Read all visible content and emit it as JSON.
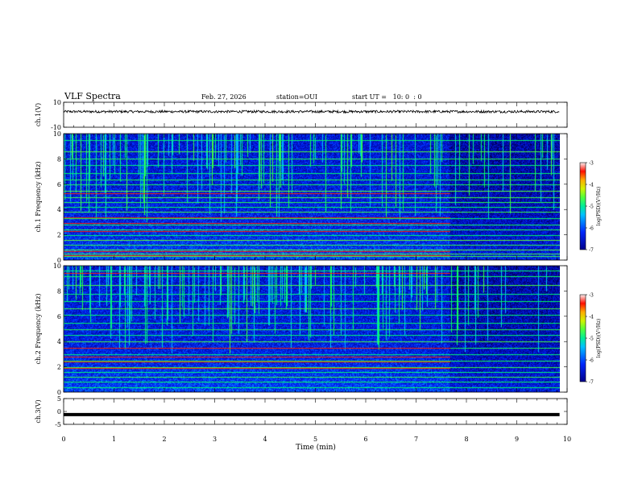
{
  "header": {
    "title": "VLF Spectra",
    "date": "Feb. 27, 2026",
    "station": "station=OUI",
    "start_ut": "start UT =   10: 0  : 0"
  },
  "chart_data": [
    {
      "type": "line",
      "panel": "ch1-waveform",
      "ylabel": "ch.1(V)",
      "ylim": [
        -10,
        10
      ],
      "yticks": [
        "10",
        "-10"
      ],
      "x": [
        0,
        1,
        2,
        3,
        4,
        5,
        6,
        7,
        8,
        9,
        9.85
      ],
      "series": [
        {
          "values": [
            2.5,
            2.5,
            2.5,
            2.5,
            2.5,
            2.5,
            2.5,
            2.5,
            2.5,
            2.5,
            2.5
          ]
        }
      ],
      "amplitude_V": 1.0
    },
    {
      "type": "heatmap",
      "panel": "ch1-spectrogram",
      "ylabel": "ch.1 Frequency (kHz)",
      "ylim": [
        0,
        10
      ],
      "yticks": [
        "0",
        "2",
        "4",
        "6",
        "8",
        "10"
      ],
      "xlim": [
        0,
        10
      ],
      "data_end_min": 9.85,
      "colorbar": {
        "label": "log(PSD)(V²/Hz)",
        "ticks": [
          "-3",
          "-4",
          "-5",
          "-6",
          "-7"
        ],
        "range": [
          -7,
          -3
        ]
      },
      "lines_khz": [
        0.3,
        0.5,
        0.8,
        1.2,
        1.6,
        2.0,
        2.4,
        2.8,
        3.3,
        3.8,
        4.2,
        4.6,
        5.0,
        5.5,
        6.0,
        6.4,
        6.9,
        7.5,
        8.0,
        8.6,
        9.5
      ],
      "hot_lines_khz": [
        0.4,
        0.7,
        2.3,
        2.9,
        3.4,
        5.3
      ]
    },
    {
      "type": "heatmap",
      "panel": "ch2-spectrogram",
      "ylabel": "ch.2 Frequency (kHz)",
      "ylim": [
        0,
        10
      ],
      "yticks": [
        "0",
        "2",
        "4",
        "6",
        "8",
        "10"
      ],
      "xlim": [
        0,
        10
      ],
      "data_end_min": 9.85,
      "colorbar": {
        "label": "log(PSD)(V²/Hz)",
        "ticks": [
          "-3",
          "-4",
          "-5",
          "-6",
          "-7"
        ],
        "range": [
          -7,
          -3
        ]
      },
      "lines_khz": [
        0.4,
        0.8,
        1.2,
        1.6,
        2.0,
        2.5,
        3.0,
        3.5,
        4.0,
        4.5,
        5.0,
        5.5,
        6.1,
        6.6,
        7.2,
        7.8,
        8.5,
        9.2,
        9.6
      ],
      "hot_lines_khz": [
        1.9,
        2.4,
        2.8,
        3.5,
        9.4
      ]
    },
    {
      "type": "line",
      "panel": "ch3-waveform",
      "ylabel": "ch.3(V)",
      "ylim": [
        -5,
        5
      ],
      "yticks": [
        "5",
        "0",
        "-5"
      ],
      "x": [
        0,
        9.85
      ],
      "series": [
        {
          "values": [
            -1.2,
            -1.2
          ]
        }
      ]
    }
  ],
  "xaxis": {
    "label": "Time (min)",
    "ticks": [
      "0",
      "1",
      "2",
      "3",
      "4",
      "5",
      "6",
      "7",
      "8",
      "9",
      "10"
    ],
    "range": [
      0,
      10
    ]
  },
  "colors": {
    "background": "#ffffff",
    "axis": "#000000",
    "colormap": [
      "#000000",
      "#0000ff",
      "#00bfff",
      "#00ff00",
      "#ffff00",
      "#ff0000",
      "#ffffff"
    ]
  }
}
